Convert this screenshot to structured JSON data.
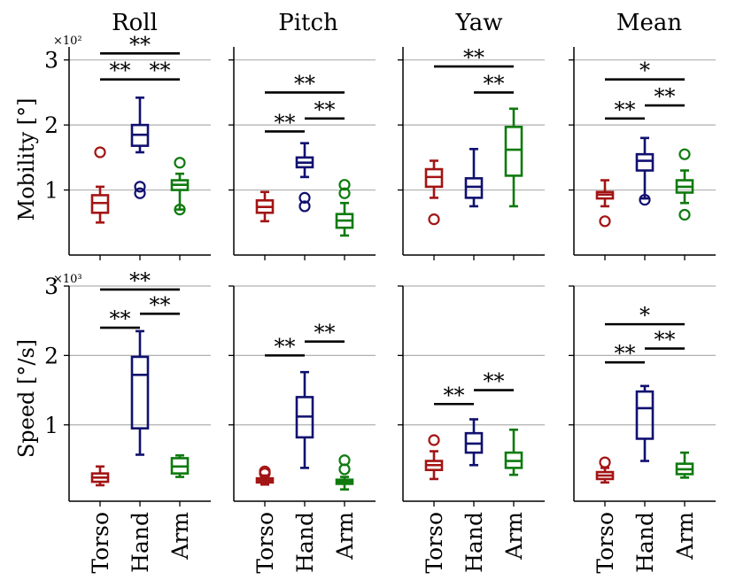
{
  "figure": {
    "categories": [
      "Torso",
      "Hand",
      "Arm"
    ],
    "colors": [
      "#a31414",
      "#101070",
      "#0e7a0e"
    ],
    "rows": [
      {
        "ylabel": "Mobility [°]",
        "multiplier": "×10²",
        "ylim": [
          0,
          3.2
        ],
        "ticks": [
          1,
          2,
          3
        ],
        "tick_labels": [
          "1",
          "2",
          "3"
        ]
      },
      {
        "ylabel": "Speed [°/s]",
        "multiplier": "×10³",
        "ylim": [
          -0.1,
          3.0
        ],
        "ticks": [
          1,
          2,
          3
        ],
        "tick_labels": [
          "1",
          "2",
          "3"
        ]
      }
    ],
    "column_titles": [
      "Roll",
      "Pitch",
      "Yaw",
      "Mean"
    ]
  },
  "chart_data": [
    {
      "type": "box",
      "title": "Roll",
      "ylabel": "Mobility [°]",
      "scale": "×10²",
      "ylim": [
        0,
        3.2
      ],
      "categories": [
        "Torso",
        "Hand",
        "Arm"
      ],
      "boxes": [
        {
          "whislo": 0.5,
          "q1": 0.65,
          "med": 0.8,
          "q3": 0.92,
          "whishi": 1.05,
          "fliers": [
            1.58
          ]
        },
        {
          "whislo": 1.58,
          "q1": 1.68,
          "med": 1.85,
          "q3": 2.0,
          "whishi": 2.42,
          "fliers": [
            0.95,
            1.05
          ]
        },
        {
          "whislo": 0.7,
          "q1": 1.0,
          "med": 1.08,
          "q3": 1.15,
          "whishi": 1.25,
          "fliers": [
            0.7,
            1.42
          ]
        }
      ],
      "significance": [
        {
          "from": 0,
          "to": 1,
          "y": 2.7,
          "label": "**"
        },
        {
          "from": 1,
          "to": 2,
          "y": 2.7,
          "label": "**"
        },
        {
          "from": 0,
          "to": 2,
          "y": 3.1,
          "label": "**"
        }
      ]
    },
    {
      "type": "box",
      "title": "Pitch",
      "ylabel": "Mobility [°]",
      "scale": "×10²",
      "ylim": [
        0,
        3.2
      ],
      "categories": [
        "Torso",
        "Hand",
        "Arm"
      ],
      "boxes": [
        {
          "whislo": 0.52,
          "q1": 0.65,
          "med": 0.74,
          "q3": 0.84,
          "whishi": 0.97,
          "fliers": []
        },
        {
          "whislo": 1.2,
          "q1": 1.35,
          "med": 1.42,
          "q3": 1.5,
          "whishi": 1.72,
          "fliers": [
            0.75,
            0.88
          ]
        },
        {
          "whislo": 0.3,
          "q1": 0.42,
          "med": 0.53,
          "q3": 0.63,
          "whishi": 0.8,
          "fliers": [
            0.95,
            1.08
          ]
        }
      ],
      "significance": [
        {
          "from": 0,
          "to": 1,
          "y": 1.9,
          "label": "**"
        },
        {
          "from": 1,
          "to": 2,
          "y": 2.1,
          "label": "**"
        },
        {
          "from": 0,
          "to": 2,
          "y": 2.5,
          "label": "**"
        }
      ]
    },
    {
      "type": "box",
      "title": "Yaw",
      "ylabel": "Mobility [°]",
      "scale": "×10²",
      "ylim": [
        0,
        3.2
      ],
      "categories": [
        "Torso",
        "Hand",
        "Arm"
      ],
      "boxes": [
        {
          "whislo": 0.88,
          "q1": 1.05,
          "med": 1.2,
          "q3": 1.32,
          "whishi": 1.45,
          "fliers": [
            0.55
          ]
        },
        {
          "whislo": 0.75,
          "q1": 0.88,
          "med": 1.05,
          "q3": 1.18,
          "whishi": 1.63,
          "fliers": []
        },
        {
          "whislo": 0.75,
          "q1": 1.22,
          "med": 1.62,
          "q3": 1.97,
          "whishi": 2.25,
          "fliers": []
        }
      ],
      "significance": [
        {
          "from": 1,
          "to": 2,
          "y": 2.5,
          "label": "**"
        },
        {
          "from": 0,
          "to": 2,
          "y": 2.9,
          "label": "**"
        }
      ]
    },
    {
      "type": "box",
      "title": "Mean",
      "ylabel": "Mobility [°]",
      "scale": "×10²",
      "ylim": [
        0,
        3.2
      ],
      "categories": [
        "Torso",
        "Hand",
        "Arm"
      ],
      "boxes": [
        {
          "whislo": 0.75,
          "q1": 0.87,
          "med": 0.93,
          "q3": 0.97,
          "whishi": 1.15,
          "fliers": [
            0.52
          ]
        },
        {
          "whislo": 0.87,
          "q1": 1.3,
          "med": 1.45,
          "q3": 1.55,
          "whishi": 1.8,
          "fliers": [
            0.85
          ]
        },
        {
          "whislo": 0.8,
          "q1": 0.96,
          "med": 1.05,
          "q3": 1.15,
          "whishi": 1.3,
          "fliers": [
            0.62,
            1.55
          ]
        }
      ],
      "significance": [
        {
          "from": 0,
          "to": 1,
          "y": 2.1,
          "label": "**"
        },
        {
          "from": 1,
          "to": 2,
          "y": 2.3,
          "label": "**"
        },
        {
          "from": 0,
          "to": 2,
          "y": 2.7,
          "label": "*"
        }
      ]
    },
    {
      "type": "box",
      "title": "Roll",
      "ylabel": "Speed [°/s]",
      "scale": "×10³",
      "ylim": [
        -0.1,
        3.0
      ],
      "categories": [
        "Torso",
        "Hand",
        "Arm"
      ],
      "boxes": [
        {
          "whislo": 0.13,
          "q1": 0.18,
          "med": 0.24,
          "q3": 0.3,
          "whishi": 0.4,
          "fliers": []
        },
        {
          "whislo": 0.57,
          "q1": 0.95,
          "med": 1.72,
          "q3": 1.98,
          "whishi": 2.35,
          "fliers": []
        },
        {
          "whislo": 0.25,
          "q1": 0.3,
          "med": 0.4,
          "q3": 0.52,
          "whishi": 0.56,
          "fliers": []
        }
      ],
      "significance": [
        {
          "from": 0,
          "to": 1,
          "y": 2.4,
          "label": "**"
        },
        {
          "from": 1,
          "to": 2,
          "y": 2.6,
          "label": "**"
        },
        {
          "from": 0,
          "to": 2,
          "y": 2.95,
          "label": "**"
        }
      ]
    },
    {
      "type": "box",
      "title": "Pitch",
      "ylabel": "Speed [°/s]",
      "scale": "×10³",
      "ylim": [
        -0.1,
        3.0
      ],
      "categories": [
        "Torso",
        "Hand",
        "Arm"
      ],
      "boxes": [
        {
          "whislo": 0.14,
          "q1": 0.17,
          "med": 0.2,
          "q3": 0.23,
          "whishi": 0.27,
          "fliers": [
            0.3,
            0.33
          ]
        },
        {
          "whislo": 0.38,
          "q1": 0.82,
          "med": 1.12,
          "q3": 1.4,
          "whishi": 1.76,
          "fliers": []
        },
        {
          "whislo": 0.07,
          "q1": 0.15,
          "med": 0.18,
          "q3": 0.21,
          "whishi": 0.25,
          "fliers": [
            0.36,
            0.49
          ]
        }
      ],
      "significance": [
        {
          "from": 0,
          "to": 1,
          "y": 2.0,
          "label": "**"
        },
        {
          "from": 1,
          "to": 2,
          "y": 2.2,
          "label": "**"
        }
      ]
    },
    {
      "type": "box",
      "title": "Yaw",
      "ylabel": "Speed [°/s]",
      "scale": "×10³",
      "ylim": [
        -0.1,
        3.0
      ],
      "categories": [
        "Torso",
        "Hand",
        "Arm"
      ],
      "boxes": [
        {
          "whislo": 0.22,
          "q1": 0.35,
          "med": 0.42,
          "q3": 0.48,
          "whishi": 0.62,
          "fliers": [
            0.78
          ]
        },
        {
          "whislo": 0.42,
          "q1": 0.6,
          "med": 0.73,
          "q3": 0.88,
          "whishi": 1.08,
          "fliers": []
        },
        {
          "whislo": 0.28,
          "q1": 0.38,
          "med": 0.48,
          "q3": 0.6,
          "whishi": 0.93,
          "fliers": []
        }
      ],
      "significance": [
        {
          "from": 0,
          "to": 1,
          "y": 1.3,
          "label": "**"
        },
        {
          "from": 1,
          "to": 2,
          "y": 1.5,
          "label": "**"
        }
      ]
    },
    {
      "type": "box",
      "title": "Mean",
      "ylabel": "Speed [°/s]",
      "scale": "×10³",
      "ylim": [
        -0.1,
        3.0
      ],
      "categories": [
        "Torso",
        "Hand",
        "Arm"
      ],
      "boxes": [
        {
          "whislo": 0.17,
          "q1": 0.22,
          "med": 0.27,
          "q3": 0.32,
          "whishi": 0.38,
          "fliers": [
            0.46
          ]
        },
        {
          "whislo": 0.48,
          "q1": 0.8,
          "med": 1.24,
          "q3": 1.48,
          "whishi": 1.56,
          "fliers": []
        },
        {
          "whislo": 0.24,
          "q1": 0.29,
          "med": 0.36,
          "q3": 0.44,
          "whishi": 0.6,
          "fliers": []
        }
      ],
      "significance": [
        {
          "from": 0,
          "to": 1,
          "y": 1.9,
          "label": "**"
        },
        {
          "from": 1,
          "to": 2,
          "y": 2.1,
          "label": "**"
        },
        {
          "from": 0,
          "to": 2,
          "y": 2.45,
          "label": "*"
        }
      ]
    }
  ]
}
